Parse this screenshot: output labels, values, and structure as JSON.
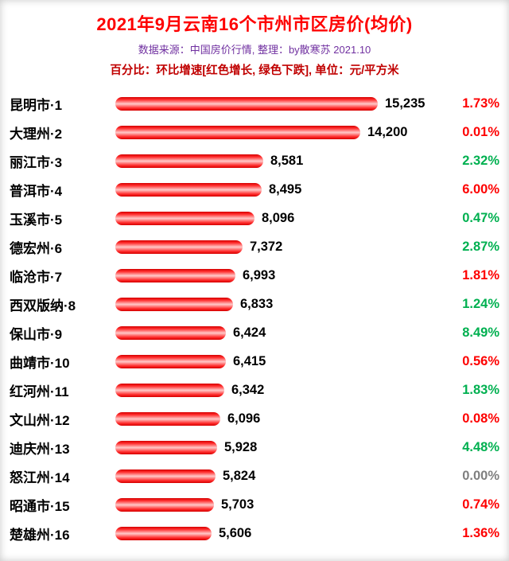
{
  "page": {
    "title": "2021年9月云南16个市州市区房价(均价)",
    "source_line": "数据来源：中国房价行情, 整理：by散寒苏 2021.10",
    "note_line": "百分比：环比增速[红色增长, 绿色下跌], 单位：元/平方米"
  },
  "colors": {
    "title_red": "#fe0000",
    "source_purple": "#7030a0",
    "note_dark_red": "#c00000",
    "bar_red": "#fe0000",
    "percent_up_red": "#fe0000",
    "percent_down_green": "#00b050",
    "percent_flat_gray": "#7f7f7f"
  },
  "chart_data": {
    "type": "bar",
    "orientation": "horizontal",
    "title": "2021年9月云南16个市州市区房价(均价)",
    "unit": "元/平方米",
    "value_range": [
      0,
      15235
    ],
    "legend": "红色增长, 绿色下跌",
    "rows": [
      {
        "label": "昆明市·1",
        "value": 15235,
        "value_label": "15,235",
        "percent": "1.73%",
        "direction": "up"
      },
      {
        "label": "大理州·2",
        "value": 14200,
        "value_label": "14,200",
        "percent": "0.01%",
        "direction": "up"
      },
      {
        "label": "丽江市·3",
        "value": 8581,
        "value_label": "8,581",
        "percent": "2.32%",
        "direction": "down"
      },
      {
        "label": "普洱市·4",
        "value": 8495,
        "value_label": "8,495",
        "percent": "6.00%",
        "direction": "up"
      },
      {
        "label": "玉溪市·5",
        "value": 8096,
        "value_label": "8,096",
        "percent": "0.47%",
        "direction": "down"
      },
      {
        "label": "德宏州·6",
        "value": 7372,
        "value_label": "7,372",
        "percent": "2.87%",
        "direction": "down"
      },
      {
        "label": "临沧市·7",
        "value": 6993,
        "value_label": "6,993",
        "percent": "1.81%",
        "direction": "up"
      },
      {
        "label": "西双版纳·8",
        "value": 6833,
        "value_label": "6,833",
        "percent": "1.24%",
        "direction": "down"
      },
      {
        "label": "保山市·9",
        "value": 6424,
        "value_label": "6,424",
        "percent": "8.49%",
        "direction": "down"
      },
      {
        "label": "曲靖市·10",
        "value": 6415,
        "value_label": "6,415",
        "percent": "0.56%",
        "direction": "up"
      },
      {
        "label": "红河州·11",
        "value": 6342,
        "value_label": "6,342",
        "percent": "1.83%",
        "direction": "down"
      },
      {
        "label": "文山州·12",
        "value": 6096,
        "value_label": "6,096",
        "percent": "0.08%",
        "direction": "up"
      },
      {
        "label": "迪庆州·13",
        "value": 5928,
        "value_label": "5,928",
        "percent": "4.48%",
        "direction": "down"
      },
      {
        "label": "怒江州·14",
        "value": 5824,
        "value_label": "5,824",
        "percent": "0.00%",
        "direction": "flat"
      },
      {
        "label": "昭通市·15",
        "value": 5703,
        "value_label": "5,703",
        "percent": "0.74%",
        "direction": "up"
      },
      {
        "label": "楚雄州·16",
        "value": 5606,
        "value_label": "5,606",
        "percent": "1.36%",
        "direction": "up"
      }
    ]
  }
}
